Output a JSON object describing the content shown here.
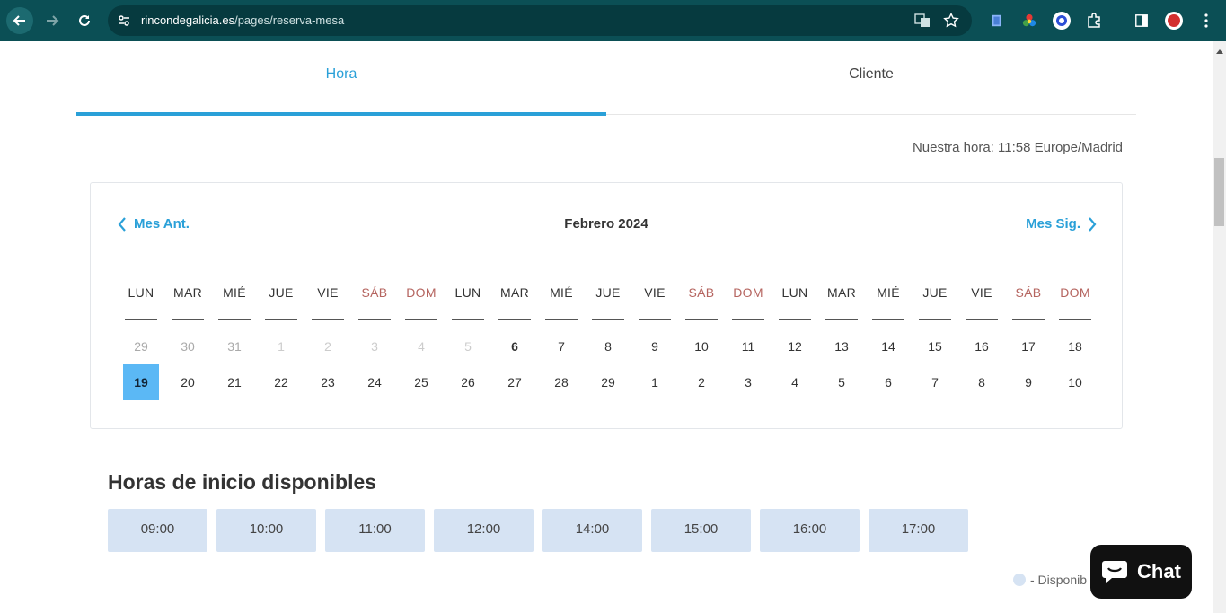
{
  "browser": {
    "url_host": "rincondegalicia.es",
    "url_path": "/pages/reserva-mesa",
    "bg_color": "#0b4f55"
  },
  "tabs": [
    {
      "label": "Hora",
      "active": true
    },
    {
      "label": "Cliente",
      "active": false
    }
  ],
  "our_time": "Nuestra hora: 11:58 Europe/Madrid",
  "calendar": {
    "prev_label": "Mes Ant.",
    "next_label": "Mes Sig.",
    "title": "Febrero 2024",
    "weekdays": [
      "LUN",
      "MAR",
      "MIÉ",
      "JUE",
      "VIE",
      "SÁB",
      "DOM",
      "LUN",
      "MAR",
      "MIÉ",
      "JUE",
      "VIE",
      "SÁB",
      "DOM",
      "LUN",
      "MAR",
      "MIÉ",
      "JUE",
      "VIE",
      "SÁB",
      "DOM"
    ],
    "row1": [
      {
        "d": "29",
        "s": "muted"
      },
      {
        "d": "30",
        "s": "muted"
      },
      {
        "d": "31",
        "s": "muted"
      },
      {
        "d": "1",
        "s": "faint"
      },
      {
        "d": "2",
        "s": "faint"
      },
      {
        "d": "3",
        "s": "faint"
      },
      {
        "d": "4",
        "s": "faint"
      },
      {
        "d": "5",
        "s": "faint"
      },
      {
        "d": "6",
        "s": "bold"
      },
      {
        "d": "7",
        "s": ""
      },
      {
        "d": "8",
        "s": ""
      },
      {
        "d": "9",
        "s": ""
      },
      {
        "d": "10",
        "s": ""
      },
      {
        "d": "11",
        "s": ""
      },
      {
        "d": "12",
        "s": ""
      },
      {
        "d": "13",
        "s": ""
      },
      {
        "d": "14",
        "s": ""
      },
      {
        "d": "15",
        "s": ""
      },
      {
        "d": "16",
        "s": ""
      },
      {
        "d": "17",
        "s": ""
      },
      {
        "d": "18",
        "s": ""
      }
    ],
    "row2": [
      {
        "d": "19",
        "s": "selected"
      },
      {
        "d": "20",
        "s": ""
      },
      {
        "d": "21",
        "s": ""
      },
      {
        "d": "22",
        "s": ""
      },
      {
        "d": "23",
        "s": ""
      },
      {
        "d": "24",
        "s": ""
      },
      {
        "d": "25",
        "s": ""
      },
      {
        "d": "26",
        "s": ""
      },
      {
        "d": "27",
        "s": ""
      },
      {
        "d": "28",
        "s": ""
      },
      {
        "d": "29",
        "s": ""
      },
      {
        "d": "1",
        "s": ""
      },
      {
        "d": "2",
        "s": ""
      },
      {
        "d": "3",
        "s": ""
      },
      {
        "d": "4",
        "s": ""
      },
      {
        "d": "5",
        "s": ""
      },
      {
        "d": "6",
        "s": ""
      },
      {
        "d": "7",
        "s": ""
      },
      {
        "d": "8",
        "s": ""
      },
      {
        "d": "9",
        "s": ""
      },
      {
        "d": "10",
        "s": ""
      }
    ]
  },
  "slots_title": "Horas de inicio disponibles",
  "slots": [
    "09:00",
    "10:00",
    "11:00",
    "12:00",
    "14:00",
    "15:00",
    "16:00",
    "17:00"
  ],
  "legend": "- Disponib",
  "chat_label": "Chat",
  "accent": "#2aa0d8",
  "weekend_color": "#b5645f",
  "slot_color": "#d6e3f3"
}
